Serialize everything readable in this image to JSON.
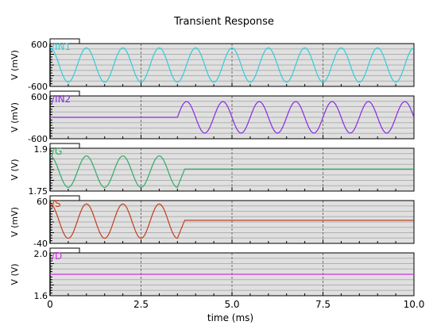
{
  "chart_data": {
    "type": "line",
    "title": "Transient Response",
    "xlabel": "time (ms)",
    "xlim": [
      0,
      10
    ],
    "xticks": [
      "0",
      "2.5",
      "5.0",
      "7.5",
      "10.0"
    ],
    "grid": true,
    "panels": [
      {
        "name": "/IN1",
        "ylabel": "V (mV)",
        "ytick_top": "600",
        "ytick_bottom": "-600",
        "ylim": [
          -600,
          600
        ],
        "color": "#33ccd9",
        "signal": {
          "kind": "sine",
          "start_ms": 0,
          "end_ms": 10,
          "frequency_khz": 1.0,
          "amplitude": 480,
          "offset": 0,
          "phase_deg": 90,
          "hold_value": 0
        }
      },
      {
        "name": "/IN2",
        "ylabel": "V (mV)",
        "ytick_top": "600",
        "ytick_bottom": "-600",
        "ylim": [
          -600,
          600
        ],
        "color": "#8a2be2",
        "signal": {
          "kind": "sine",
          "start_ms": 3.5,
          "end_ms": 10,
          "frequency_khz": 1.0,
          "amplitude": 440,
          "offset": 0,
          "phase_deg": 0,
          "hold_value": 0
        }
      },
      {
        "name": "/G",
        "ylabel": "V (V)",
        "ytick_top": "1.9",
        "ytick_bottom": "1.75",
        "ylim": [
          1.75,
          1.9
        ],
        "color": "#33aa66",
        "signal": {
          "kind": "sine",
          "start_ms": 0,
          "end_ms": 3.5,
          "frequency_khz": 1.0,
          "amplitude": 0.055,
          "offset": 1.818,
          "phase_deg": 90,
          "hold_value": 1.827
        }
      },
      {
        "name": "/S",
        "ylabel": "V (mV)",
        "ytick_top": "60",
        "ytick_bottom": "-40",
        "ylim": [
          -40,
          60
        ],
        "color": "#c04020",
        "signal": {
          "kind": "sine",
          "start_ms": 0,
          "end_ms": 3.5,
          "frequency_khz": 1.0,
          "amplitude": 40,
          "offset": 12,
          "phase_deg": 90,
          "hold_value": 14
        }
      },
      {
        "name": "/D",
        "ylabel": "V (V)",
        "ytick_top": "2.0",
        "ytick_bottom": "1.6",
        "ylim": [
          1.6,
          2.0
        ],
        "color": "#cc33dd",
        "signal": {
          "kind": "constant",
          "start_ms": 0,
          "end_ms": 10,
          "frequency_khz": 0,
          "amplitude": 0,
          "offset": 1.8,
          "phase_deg": 0,
          "hold_value": 1.8
        }
      }
    ]
  }
}
